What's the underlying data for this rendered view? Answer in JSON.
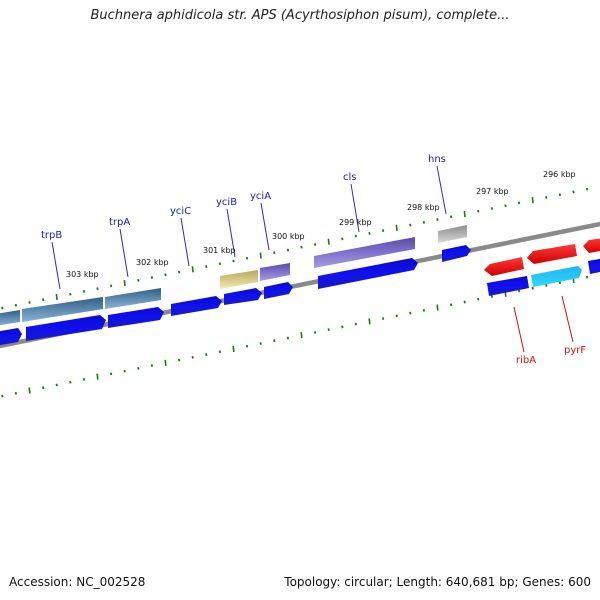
{
  "header": {
    "title": "Buchnera aphidicola str. APS (Acyrthosiphon pisum), complete..."
  },
  "footer": {
    "accession": "Accession: NC_002528",
    "summary": "Topology: circular; Length: 640,681 bp; Genes: 600"
  },
  "kbp_labels": [
    "303 kbp",
    "302 kbp",
    "301 kbp",
    "300 kbp",
    "299 kbp",
    "298 kbp",
    "297 kbp",
    "296 kbp"
  ],
  "gene_labels_forward": [
    "trpB",
    "trpA",
    "yciC",
    "yciB",
    "yciA",
    "cls",
    "hns"
  ],
  "gene_labels_reverse": [
    "ribA",
    "pyrF"
  ],
  "colors": {
    "forward_label": "#1c1cb0",
    "reverse_label": "#cc1111",
    "cds_forward": "#1010e6",
    "cds_reverse": "#ff1a1a",
    "backbone": "#8a8a8a",
    "tick": "#1a7a1a"
  }
}
